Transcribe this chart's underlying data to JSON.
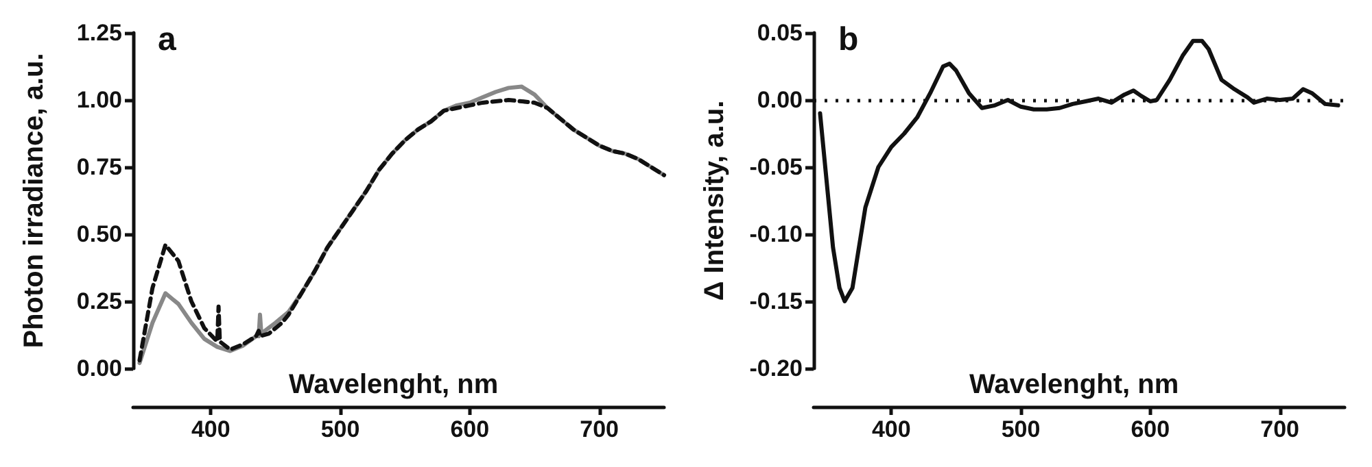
{
  "chart_data": [
    {
      "type": "line",
      "title": "a",
      "xlabel": "Wavelenght, nm",
      "ylabel": "Photon irradiance, a.u.",
      "xlim": [
        340,
        750
      ],
      "xticks": [
        400,
        500,
        600,
        700
      ],
      "ylim": [
        0,
        1.25
      ],
      "yticks": [
        {
          "value": 0,
          "label": "0.00"
        },
        {
          "value": 0.25,
          "label": "0.25"
        },
        {
          "value": 0.5,
          "label": "0.50"
        },
        {
          "value": 0.75,
          "label": "0.75"
        },
        {
          "value": 1,
          "label": "1.00"
        },
        {
          "value": 1.25,
          "label": "1.25"
        }
      ],
      "grid": false,
      "marker": "none",
      "series": [
        {
          "color": "#888888",
          "line_style": "solid",
          "x": [
            345,
            355,
            365,
            375,
            385,
            395,
            405,
            415,
            425,
            435,
            437,
            438,
            439,
            450,
            460,
            470,
            480,
            490,
            500,
            510,
            520,
            530,
            540,
            550,
            560,
            570,
            580,
            590,
            600,
            610,
            620,
            630,
            640,
            650,
            660,
            670,
            680,
            690,
            700,
            710,
            720,
            730,
            740,
            750
          ],
          "values": [
            0.02,
            0.17,
            0.28,
            0.24,
            0.17,
            0.11,
            0.08,
            0.065,
            0.085,
            0.12,
            0.12,
            0.2,
            0.13,
            0.17,
            0.21,
            0.28,
            0.36,
            0.45,
            0.52,
            0.59,
            0.66,
            0.74,
            0.8,
            0.85,
            0.89,
            0.92,
            0.96,
            0.98,
            0.99,
            1.01,
            1.03,
            1.045,
            1.05,
            1.02,
            0.97,
            0.93,
            0.89,
            0.86,
            0.83,
            0.81,
            0.8,
            0.78,
            0.75,
            0.72
          ]
        },
        {
          "color": "#111111",
          "line_style": "dashed",
          "x": [
            345,
            355,
            365,
            375,
            385,
            395,
            405,
            406,
            407,
            415,
            425,
            435,
            437,
            438,
            445,
            455,
            460,
            470,
            480,
            490,
            500,
            510,
            520,
            530,
            540,
            550,
            560,
            570,
            580,
            590,
            600,
            610,
            620,
            630,
            640,
            650,
            660,
            670,
            680,
            690,
            700,
            710,
            720,
            730,
            740,
            750
          ],
          "values": [
            0.03,
            0.3,
            0.46,
            0.4,
            0.25,
            0.15,
            0.1,
            0.23,
            0.1,
            0.07,
            0.09,
            0.12,
            0.14,
            0.12,
            0.13,
            0.17,
            0.2,
            0.28,
            0.36,
            0.45,
            0.52,
            0.59,
            0.66,
            0.74,
            0.8,
            0.85,
            0.89,
            0.92,
            0.96,
            0.97,
            0.98,
            0.99,
            0.995,
            1.0,
            0.995,
            0.99,
            0.97,
            0.93,
            0.89,
            0.86,
            0.83,
            0.81,
            0.8,
            0.78,
            0.75,
            0.72
          ]
        }
      ]
    },
    {
      "type": "line",
      "title": "b",
      "xlabel": "Wavelenght, nm",
      "ylabel": "Δ Intensity, a.u.",
      "xlim": [
        340,
        750
      ],
      "xticks": [
        400,
        500,
        600,
        700
      ],
      "ylim": [
        -0.2,
        0.05
      ],
      "yticks": [
        {
          "value": -0.2,
          "label": "-0.20"
        },
        {
          "value": -0.15,
          "label": "-0.15"
        },
        {
          "value": -0.1,
          "label": "-0.10"
        },
        {
          "value": -0.05,
          "label": "-0.05"
        },
        {
          "value": 0,
          "label": "0.00"
        },
        {
          "value": 0.05,
          "label": "0.05"
        }
      ],
      "grid": false,
      "marker": "none",
      "ref_lines": [
        {
          "axis": "y",
          "value": 0,
          "line_style": "dotted",
          "color": "#111111"
        }
      ],
      "series": [
        {
          "color": "#111111",
          "line_style": "solid",
          "x": [
            345,
            350,
            355,
            360,
            364,
            370,
            375,
            380,
            390,
            400,
            410,
            420,
            430,
            440,
            445,
            450,
            460,
            470,
            480,
            490,
            500,
            510,
            520,
            530,
            540,
            550,
            560,
            570,
            580,
            587,
            593,
            600,
            605,
            615,
            625,
            633,
            640,
            645,
            655,
            665,
            675,
            680,
            690,
            700,
            710,
            718,
            725,
            735,
            745
          ],
          "values": [
            -0.01,
            -0.06,
            -0.11,
            -0.14,
            -0.15,
            -0.14,
            -0.11,
            -0.08,
            -0.05,
            -0.035,
            -0.025,
            -0.013,
            0.005,
            0.025,
            0.027,
            0.022,
            0.005,
            -0.006,
            -0.004,
            0,
            -0.005,
            -0.007,
            -0.007,
            -0.006,
            -0.003,
            -0.001,
            0.001,
            -0.002,
            0.004,
            0.007,
            0.003,
            -0.001,
            0,
            0.015,
            0.033,
            0.044,
            0.044,
            0.038,
            0.015,
            0.008,
            0.002,
            -0.002,
            0.001,
            0,
            0.001,
            0.008,
            0.005,
            -0.003,
            -0.004
          ]
        }
      ]
    }
  ]
}
